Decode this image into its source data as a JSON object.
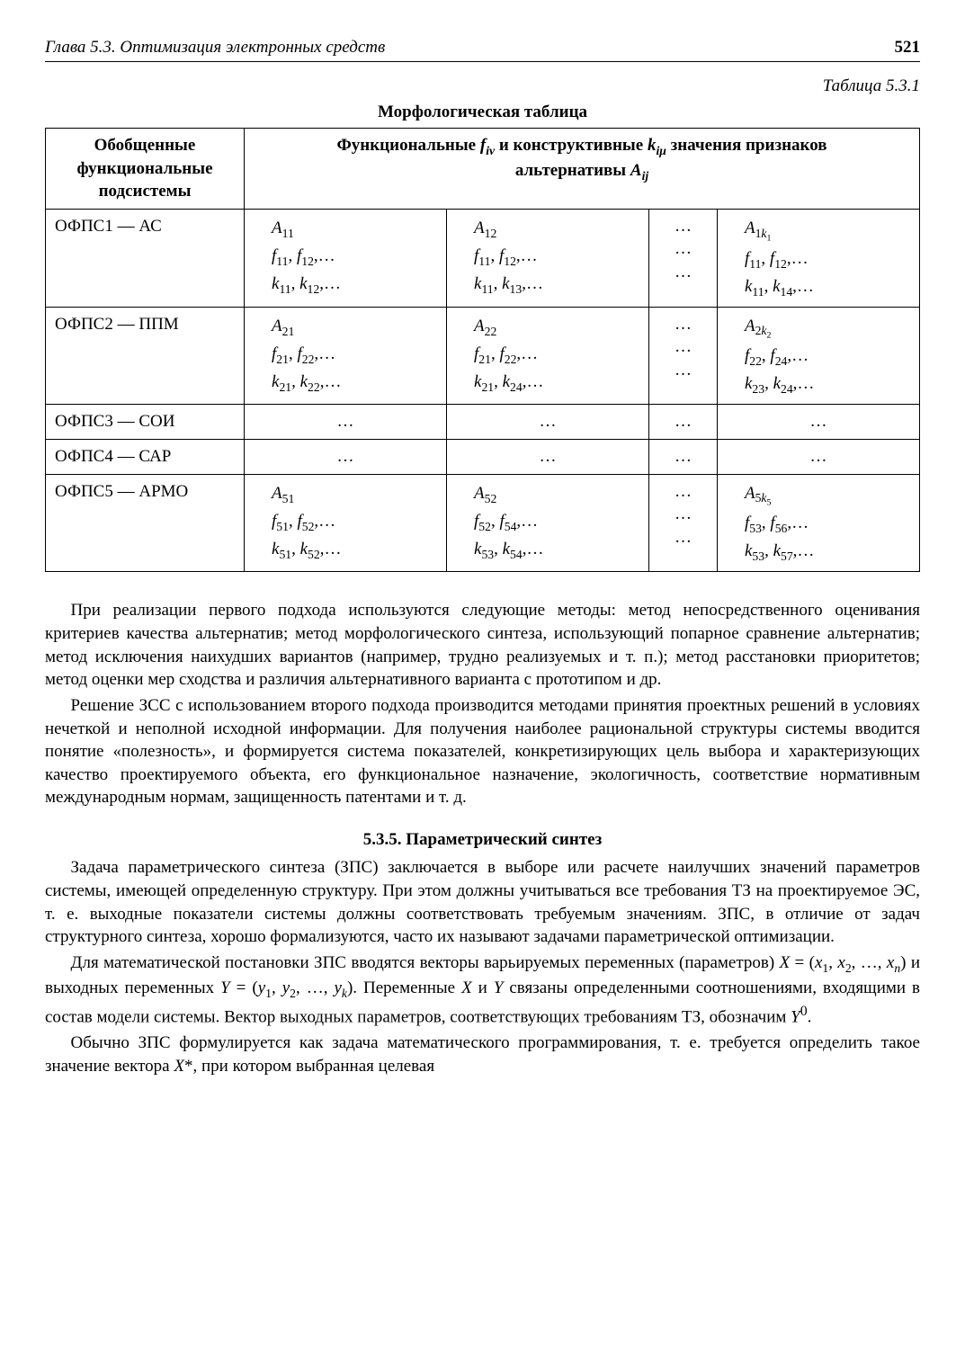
{
  "header": {
    "chapter": "Глава 5.3. Оптимизация электронных средств",
    "page": "521"
  },
  "tableLabel": "Таблица 5.3.1",
  "tableTitle": "Морфологическая таблица",
  "table": {
    "headLeft": "Обобщенные функциональные подсистемы",
    "headRightLine1": "Функциональные f_{iν} и конструктивные k_{iμ} значения признаков",
    "headRightLine2": "альтернативы A_{ij}",
    "rows": [
      {
        "label": "ОФПС1 — АС",
        "c1": [
          "A₁₁",
          "f₁₁, f₁₂,…",
          "k₁₁, k₁₂,…"
        ],
        "c2": [
          "A₁₂",
          "f₁₁, f₁₂,…",
          "k₁₁, k₁₃,…"
        ],
        "c3": [
          "…",
          "…",
          "…"
        ],
        "c4": [
          "A_{1k₁}",
          "f₁₁, f₁₂,…",
          "k₁₁, k₁₄,…"
        ]
      },
      {
        "label": "ОФПС2 — ППМ",
        "c1": [
          "A₂₁",
          "f₂₁, f₂₂,…",
          "k₂₁, k₂₂,…"
        ],
        "c2": [
          "A₂₂",
          "f₂₁, f₂₂,…",
          "k₂₁, k₂₄,…"
        ],
        "c3": [
          "…",
          "…",
          "…"
        ],
        "c4": [
          "A_{2k₂}",
          "f₂₂, f₂₄,…",
          "k₂₃, k₂₄,…"
        ]
      },
      {
        "label": "ОФПС3 — СОИ",
        "c1": [
          "…"
        ],
        "c2": [
          "…"
        ],
        "c3": [
          "…"
        ],
        "c4": [
          "…"
        ]
      },
      {
        "label": "ОФПС4 — САР",
        "c1": [
          "…"
        ],
        "c2": [
          "…"
        ],
        "c3": [
          "…"
        ],
        "c4": [
          "…"
        ]
      },
      {
        "label": "ОФПС5 — АРМО",
        "c1": [
          "A₅₁",
          "f₅₁, f₅₂,…",
          "k₅₁, k₅₂,…"
        ],
        "c2": [
          "A₅₂",
          "f₅₂, f₅₄,…",
          "k₅₃, k₅₄,…"
        ],
        "c3": [
          "…",
          "…",
          "…"
        ],
        "c4": [
          "A_{5k₅}",
          "f₅₃, f₅₆,…",
          "k₅₃, k₅₇,…"
        ]
      }
    ]
  },
  "para1": "При реализации первого подхода используются следующие методы: метод непосредственного оценивания критериев качества альтернатив; метод морфологического синтеза, использующий попарное сравнение альтернатив; метод исключения наихудших вариантов (например, трудно реализуемых и т. п.); метод расстановки приоритетов; метод оценки мер сходства и различия альтернативного варианта с прототипом и др.",
  "para2": "Решение ЗСС с использованием второго подхода производится методами принятия проектных решений в условиях нечеткой и неполной исходной информации. Для получения наиболее рациональной структуры системы вводится понятие «полезность», и формируется система показателей, конкретизирующих цель выбора и характеризующих качество проектируемого объекта, его функциональное назначение, экологичность, соответствие нормативным международным нормам, защищенность патентами и т. д.",
  "sectionTitle": "5.3.5. Параметрический синтез",
  "para3": "Задача параметрического синтеза (ЗПС) заключается в выборе или расчете наилучших значений параметров системы, имеющей определенную структуру. При этом должны учитываться все требования ТЗ на проектируемое ЭС, т. е. выходные показатели системы должны соответствовать требуемым значениям. ЗПС, в отличие от задач структурного синтеза, хорошо формализуются, часто их называют задачами параметрической оптимизации.",
  "para4": "Для математической постановки ЗПС вводятся векторы варьируемых переменных (параметров) X = (x₁, x₂, …, xₙ) и выходных переменных Y = (y₁, y₂, …, yₖ). Переменные X и Y связаны определенными соотношениями, входящими в состав модели системы. Вектор выходных параметров, соответствующих требованиям ТЗ, обозначим Y⁰.",
  "para5": "Обычно ЗПС формулируется как задача математического программирования, т. е. требуется определить такое значение вектора X*, при котором выбранная целевая"
}
